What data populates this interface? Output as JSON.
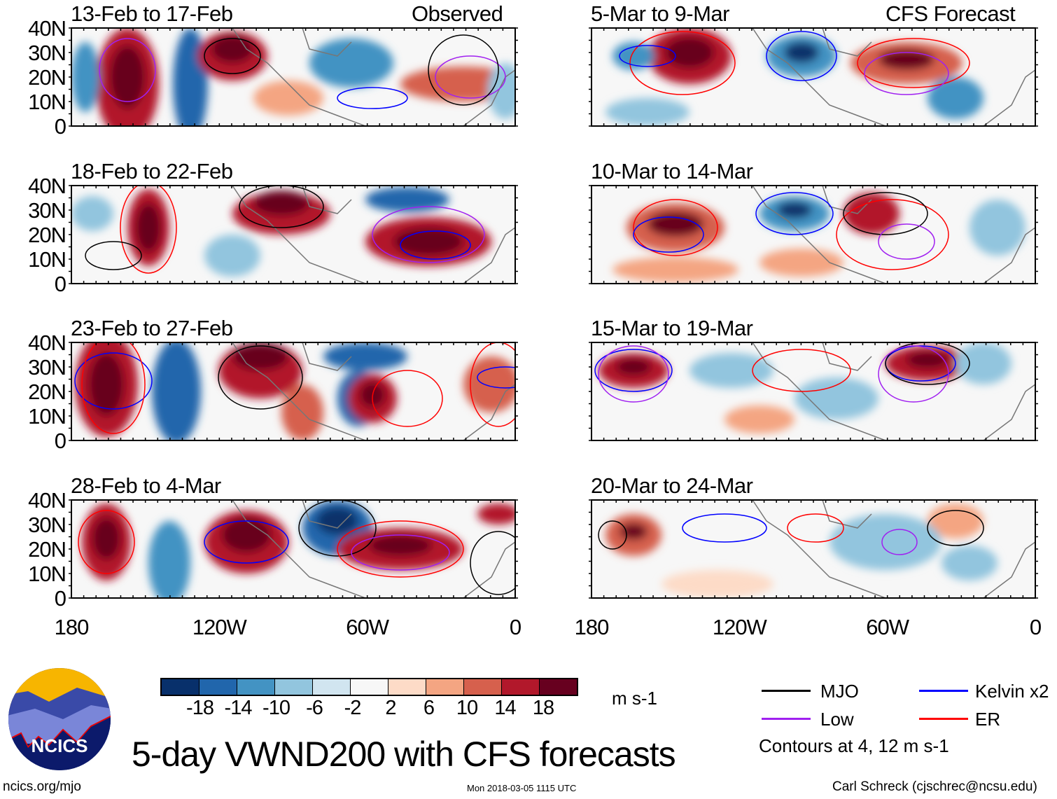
{
  "figure_title": "5-day VWND200 with CFS forecasts",
  "observed_label": "Observed",
  "forecast_label": "CFS Forecast",
  "observed_panels": [
    "13-Feb to 17-Feb",
    "18-Feb to 22-Feb",
    "23-Feb to 27-Feb",
    "28-Feb to 4-Mar"
  ],
  "forecast_panels": [
    "5-Mar to 9-Mar",
    "10-Mar to 14-Mar",
    "15-Mar to 19-Mar",
    "20-Mar to 24-Mar"
  ],
  "lat_labels": [
    "40N",
    "30N",
    "20N",
    "10N",
    "0"
  ],
  "lon_labels": [
    "180",
    "120W",
    "60W",
    "0"
  ],
  "colorbar": {
    "ticks": [
      "-18",
      "-14",
      "-10",
      "-6",
      "-2",
      "2",
      "6",
      "10",
      "14",
      "18"
    ],
    "colors": [
      "#08306b",
      "#2166ac",
      "#4393c3",
      "#92c5de",
      "#d1e5f0",
      "#f7f7f7",
      "#fddbc7",
      "#f4a582",
      "#d6604d",
      "#b2182b",
      "#67001f"
    ],
    "units": "m s-1"
  },
  "legend": {
    "items": [
      {
        "label": "MJO",
        "color": "#000000"
      },
      {
        "label": "Kelvin x2",
        "color": "#0000ff"
      },
      {
        "label": "Low",
        "color": "#a020f0"
      },
      {
        "label": "ER",
        "color": "#ff0000"
      }
    ],
    "note": "Contours at 4, 12 m s-1"
  },
  "logo_text": "NCICS",
  "footer": {
    "url": "ncics.org/mjo",
    "timestamp": "Mon 2018-03-05 1115 UTC",
    "author": "Carl Schreck (cjschrec@ncsu.edu)"
  }
}
